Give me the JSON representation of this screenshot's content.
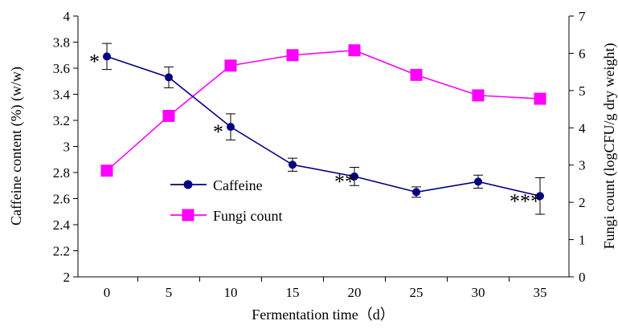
{
  "chart_data": {
    "type": "line",
    "xlabel": "Fermentation time（d）",
    "ylabel_left": "Caffeine content (%) (w/w)",
    "ylabel_right": "Fungi count (logCFU/g dry weight)",
    "x": [
      0,
      5,
      10,
      15,
      20,
      25,
      30,
      35
    ],
    "x_tick_labels": [
      "0",
      "5",
      "10",
      "15",
      "20",
      "25",
      "30",
      "35"
    ],
    "ylim_left": [
      2,
      4
    ],
    "y_left_ticks": [
      2,
      2.2,
      2.4,
      2.6,
      2.8,
      3,
      3.2,
      3.4,
      3.6,
      3.8,
      4
    ],
    "y_left_tick_labels": [
      "2",
      "2.2",
      "2.4",
      "2.6",
      "2.8",
      "3",
      "3.2",
      "3.4",
      "3.6",
      "3.8",
      "4"
    ],
    "ylim_right": [
      0,
      7
    ],
    "y_right_ticks": [
      0,
      1,
      2,
      3,
      4,
      5,
      6,
      7
    ],
    "y_right_tick_labels": [
      "0",
      "1",
      "2",
      "3",
      "4",
      "5",
      "6",
      "7"
    ],
    "grid": false,
    "legend_position": "center-left",
    "series": [
      {
        "name": "Caffeine",
        "axis": "left",
        "color": "#000080",
        "marker": "circle",
        "values": [
          3.69,
          3.53,
          3.15,
          2.86,
          2.77,
          2.65,
          2.73,
          2.62
        ],
        "error": [
          0.1,
          0.08,
          0.1,
          0.05,
          0.07,
          0.04,
          0.05,
          0.14
        ],
        "significance": [
          "*",
          "",
          "*",
          "",
          "**",
          "",
          "",
          "***"
        ]
      },
      {
        "name": "Fungi count",
        "axis": "right",
        "color": "#FF00FF",
        "marker": "square",
        "values": [
          2.85,
          4.32,
          5.67,
          5.95,
          6.08,
          5.42,
          4.87,
          4.78
        ]
      }
    ]
  }
}
